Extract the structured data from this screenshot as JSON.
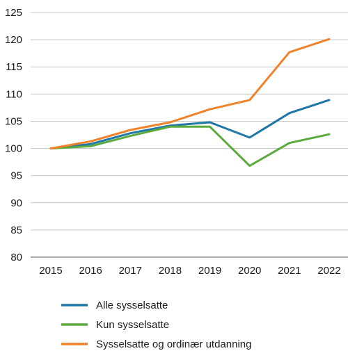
{
  "chart_data": {
    "type": "line",
    "title": "",
    "xlabel": "",
    "ylabel": "",
    "x": [
      "2015",
      "2016",
      "2017",
      "2018",
      "2019",
      "2020",
      "2021",
      "2022"
    ],
    "ylim": [
      80,
      125
    ],
    "yticks": [
      80,
      85,
      90,
      95,
      100,
      105,
      110,
      115,
      120,
      125
    ],
    "grid": true,
    "legend_position": "bottom",
    "series": [
      {
        "name": "Alle sysselsatte",
        "color": "#1f77a8",
        "values": [
          100,
          100.8,
          102.8,
          104.2,
          104.8,
          102.0,
          106.5,
          108.9
        ]
      },
      {
        "name": "Kun sysselsatte",
        "color": "#5aaa3c",
        "values": [
          100,
          100.4,
          102.3,
          104.0,
          104.0,
          96.8,
          101.0,
          102.6
        ]
      },
      {
        "name": "Sysselsatte og ordinær utdanning",
        "color": "#f0822a",
        "values": [
          100,
          101.3,
          103.4,
          104.8,
          107.2,
          108.9,
          117.7,
          120.1
        ]
      }
    ]
  }
}
